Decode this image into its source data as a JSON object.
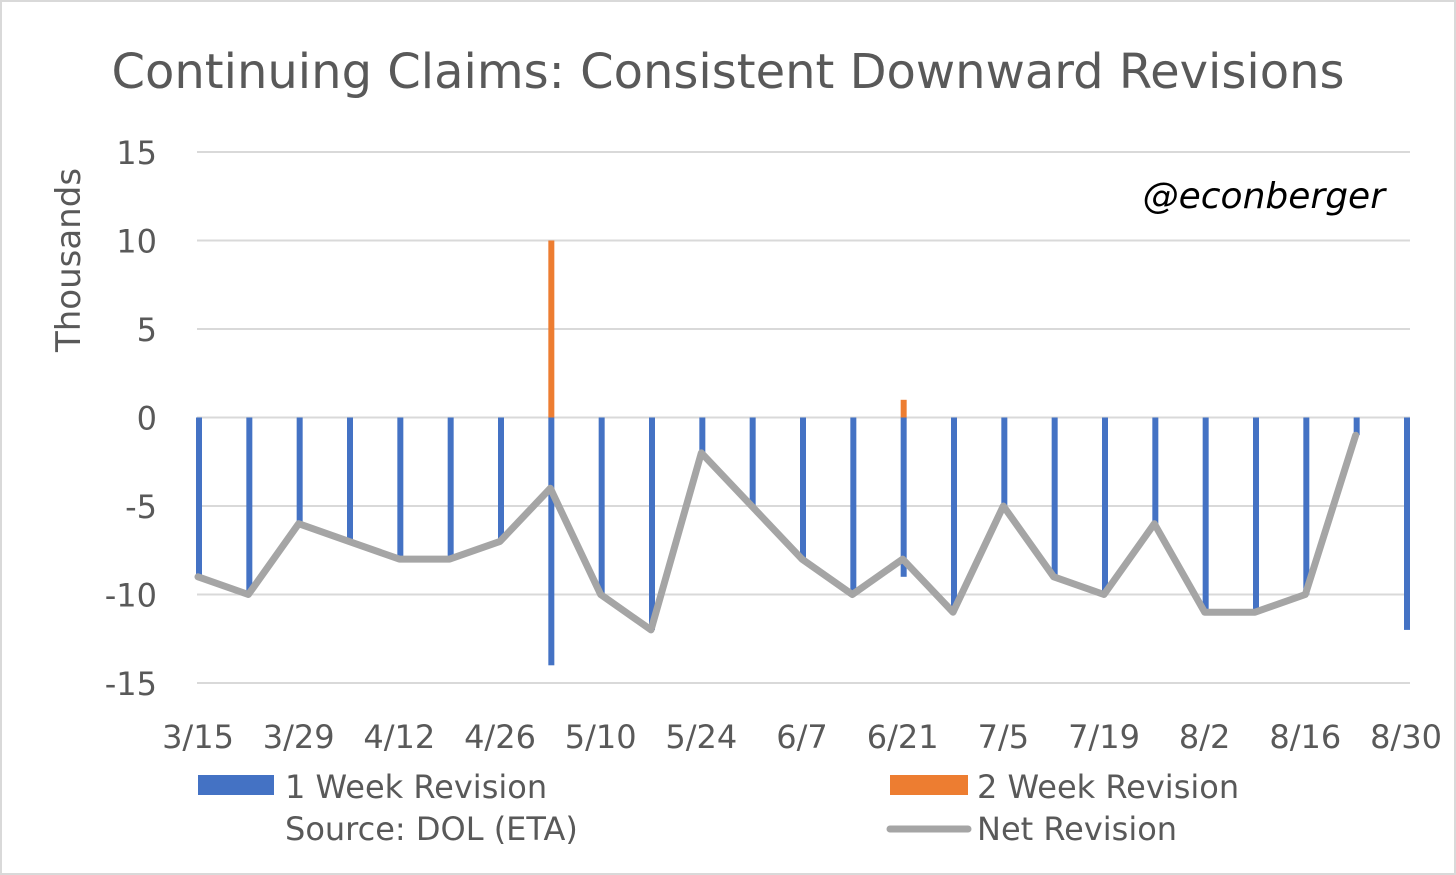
{
  "chart_data": {
    "type": "bar",
    "title": "Continuing Claims: Consistent Downward Revisions",
    "ylabel": "Thousands",
    "xlabel": "",
    "watermark": "@econberger",
    "source_note": "Source: DOL (ETA)",
    "ylim": [
      -15,
      15
    ],
    "yticks": [
      15,
      10,
      5,
      0,
      -5,
      -10,
      -15
    ],
    "grid": true,
    "legend_position": "bottom",
    "x": [
      "3/15",
      "3/22",
      "3/29",
      "4/5",
      "4/12",
      "4/19",
      "4/26",
      "5/3",
      "5/10",
      "5/17",
      "5/24",
      "5/31",
      "6/7",
      "6/14",
      "6/21",
      "6/28",
      "7/5",
      "7/12",
      "7/19",
      "7/26",
      "8/2",
      "8/9",
      "8/16",
      "8/23",
      "8/30"
    ],
    "xtick_labels": [
      "3/15",
      "3/29",
      "4/12",
      "4/26",
      "5/10",
      "5/24",
      "6/7",
      "6/21",
      "7/5",
      "7/19",
      "8/2",
      "8/16",
      "8/30"
    ],
    "series": [
      {
        "name": "1 Week Revision",
        "kind": "bar",
        "color": "#4472c4",
        "values": [
          -9,
          -10,
          -6,
          -7,
          -8,
          -8,
          -7,
          -14,
          -10,
          -12,
          -2,
          -5,
          -8,
          -10,
          -9,
          -11,
          -5,
          -9,
          -10,
          -6,
          -11,
          -11,
          -10,
          -1,
          -12
        ]
      },
      {
        "name": "2 Week Revision",
        "kind": "bar",
        "color": "#ed7d31",
        "values": [
          0,
          0,
          0,
          0,
          0,
          0,
          0,
          10,
          0,
          0,
          0,
          0,
          0,
          0,
          1,
          0,
          0,
          0,
          0,
          0,
          0,
          0,
          0,
          0,
          null
        ]
      },
      {
        "name": "Net Revision",
        "kind": "line",
        "color": "#a5a5a5",
        "values": [
          -9,
          -10,
          -6,
          -7,
          -8,
          -8,
          -7,
          -4,
          -10,
          -12,
          -2,
          -5,
          -8,
          -10,
          -8,
          -11,
          -5,
          -9,
          -10,
          -6,
          -11,
          -11,
          -10,
          -1,
          null
        ]
      }
    ]
  }
}
